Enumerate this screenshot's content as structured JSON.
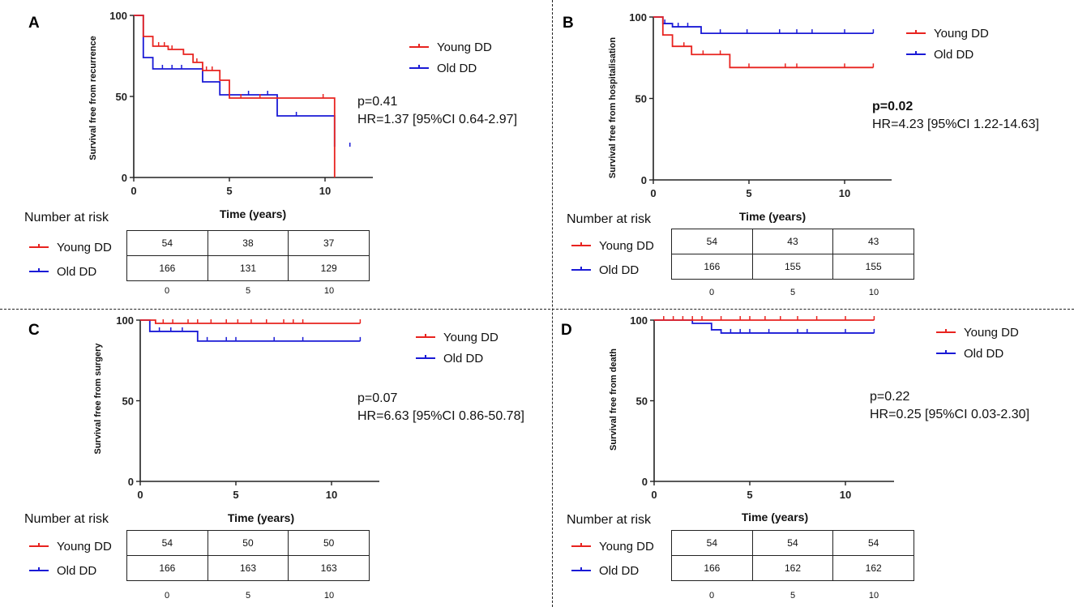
{
  "figure": {
    "risk_table_title": "Number at risk",
    "xlabel": "Time (years)"
  },
  "series_colors": {
    "young": "#e8231f",
    "old": "#1a1ad6"
  },
  "chart_data": [
    {
      "type": "line",
      "panel": "A",
      "ylabel": "Survival free from recurrence",
      "xlabel": "Time (years)",
      "xlim": [
        0,
        12.5
      ],
      "ylim": [
        0,
        100
      ],
      "xticks": [
        "0",
        "5",
        "10"
      ],
      "yticks": [
        "0",
        "50",
        "100"
      ],
      "series": [
        {
          "name": "Young DD",
          "color": "#e8231f",
          "x": [
            0,
            0.5,
            1.0,
            1.8,
            2.6,
            3.1,
            3.6,
            4.5,
            5.0,
            10.5
          ],
          "y": [
            100,
            87,
            81,
            79,
            76,
            71,
            66,
            60,
            49,
            0
          ],
          "censored": [
            [
              1.3,
              81
            ],
            [
              1.6,
              81
            ],
            [
              2.0,
              79
            ],
            [
              3.3,
              71
            ],
            [
              3.8,
              66
            ],
            [
              4.1,
              66
            ],
            [
              5.6,
              49
            ],
            [
              6.6,
              49
            ],
            [
              9.9,
              49
            ]
          ]
        },
        {
          "name": "Old DD",
          "color": "#1a1ad6",
          "x": [
            0,
            0.5,
            1.0,
            3.6,
            4.5,
            7.5,
            10.5
          ],
          "y": [
            100,
            74,
            67,
            59,
            51,
            38,
            19
          ],
          "censored": [
            [
              1.5,
              67
            ],
            [
              2.0,
              67
            ],
            [
              2.5,
              67
            ],
            [
              6.0,
              51
            ],
            [
              7.0,
              51
            ],
            [
              8.5,
              38
            ],
            [
              11.3,
              19
            ]
          ]
        }
      ],
      "annotation": {
        "p": "p=0.41",
        "hr": "HR=1.37 [95%CI 0.64-2.97]",
        "p_bold": false
      },
      "risk": {
        "xticks": [
          "0",
          "5",
          "10"
        ],
        "young": [
          "54",
          "38",
          "37"
        ],
        "old": [
          "166",
          "131",
          "129"
        ]
      }
    },
    {
      "type": "line",
      "panel": "B",
      "ylabel": "Survival free from hospitalisation",
      "xlabel": "Time (years)",
      "xlim": [
        0,
        12.5
      ],
      "ylim": [
        0,
        100
      ],
      "xticks": [
        "0",
        "5",
        "10"
      ],
      "yticks": [
        "0",
        "50",
        "100"
      ],
      "series": [
        {
          "name": "Young DD",
          "color": "#e8231f",
          "x": [
            0,
            0.5,
            1.0,
            2.0,
            4.0,
            11.5
          ],
          "y": [
            100,
            89,
            82,
            77,
            69,
            69
          ],
          "censored": [
            [
              1.6,
              82
            ],
            [
              2.6,
              77
            ],
            [
              3.5,
              77
            ],
            [
              5.0,
              69
            ],
            [
              6.9,
              69
            ],
            [
              7.5,
              69
            ],
            [
              10.0,
              69
            ],
            [
              11.5,
              69
            ]
          ]
        },
        {
          "name": "Old DD",
          "color": "#1a1ad6",
          "x": [
            0,
            0.5,
            1.0,
            2.5,
            11.5
          ],
          "y": [
            100,
            96,
            94,
            90,
            90
          ],
          "censored": [
            [
              0.6,
              96
            ],
            [
              1.3,
              94
            ],
            [
              1.8,
              94
            ],
            [
              3.5,
              90
            ],
            [
              4.9,
              90
            ],
            [
              6.6,
              90
            ],
            [
              7.5,
              90
            ],
            [
              8.3,
              90
            ],
            [
              10.0,
              90
            ],
            [
              11.5,
              90
            ]
          ]
        }
      ],
      "annotation": {
        "p": "p=0.02",
        "hr": "HR=4.23 [95%CI 1.22-14.63]",
        "p_bold": true
      },
      "risk": {
        "xticks": [
          "0",
          "5",
          "10"
        ],
        "young": [
          "54",
          "43",
          "43"
        ],
        "old": [
          "166",
          "155",
          "155"
        ]
      }
    },
    {
      "type": "line",
      "panel": "C",
      "ylabel": "Survival free from surgery",
      "xlabel": "Time (years)",
      "xlim": [
        0,
        12.5
      ],
      "ylim": [
        0,
        100
      ],
      "xticks": [
        "0",
        "5",
        "10"
      ],
      "yticks": [
        "0",
        "50",
        "100"
      ],
      "series": [
        {
          "name": "Young DD",
          "color": "#e8231f",
          "x": [
            0,
            0.8,
            11.5
          ],
          "y": [
            100,
            98,
            98
          ],
          "censored": [
            [
              1.2,
              98
            ],
            [
              1.7,
              98
            ],
            [
              2.5,
              98
            ],
            [
              3.0,
              98
            ],
            [
              3.7,
              98
            ],
            [
              4.5,
              98
            ],
            [
              5.1,
              98
            ],
            [
              5.8,
              98
            ],
            [
              6.6,
              98
            ],
            [
              7.5,
              98
            ],
            [
              8.0,
              98
            ],
            [
              8.5,
              98
            ],
            [
              11.5,
              98
            ]
          ]
        },
        {
          "name": "Old DD",
          "color": "#1a1ad6",
          "x": [
            0,
            0.5,
            3.0,
            11.5
          ],
          "y": [
            100,
            93,
            87,
            87
          ],
          "censored": [
            [
              1.0,
              93
            ],
            [
              1.6,
              93
            ],
            [
              2.2,
              93
            ],
            [
              3.5,
              87
            ],
            [
              4.5,
              87
            ],
            [
              5.0,
              87
            ],
            [
              7.0,
              87
            ],
            [
              8.5,
              87
            ],
            [
              11.5,
              87
            ]
          ]
        }
      ],
      "annotation": {
        "p": "p=0.07",
        "hr": "HR=6.63 [95%CI 0.86-50.78]",
        "p_bold": false
      },
      "risk": {
        "xticks": [
          "0",
          "5",
          "10"
        ],
        "young": [
          "54",
          "50",
          "50"
        ],
        "old": [
          "166",
          "163",
          "163"
        ]
      }
    },
    {
      "type": "line",
      "panel": "D",
      "ylabel": "Survival free from death",
      "xlabel": "Time (years)",
      "xlim": [
        0,
        12.5
      ],
      "ylim": [
        0,
        100
      ],
      "xticks": [
        "0",
        "5",
        "10"
      ],
      "yticks": [
        "0",
        "50",
        "100"
      ],
      "series": [
        {
          "name": "Young DD",
          "color": "#e8231f",
          "x": [
            0,
            11.5
          ],
          "y": [
            100,
            100
          ],
          "censored": [
            [
              0.5,
              100
            ],
            [
              1.0,
              100
            ],
            [
              1.5,
              100
            ],
            [
              2.0,
              100
            ],
            [
              2.5,
              100
            ],
            [
              3.5,
              100
            ],
            [
              4.5,
              100
            ],
            [
              5.0,
              100
            ],
            [
              5.8,
              100
            ],
            [
              6.6,
              100
            ],
            [
              7.5,
              100
            ],
            [
              8.5,
              100
            ],
            [
              10.0,
              100
            ],
            [
              11.5,
              100
            ]
          ]
        },
        {
          "name": "Old DD",
          "color": "#1a1ad6",
          "x": [
            0,
            2.0,
            3.0,
            3.5,
            11.5
          ],
          "y": [
            100,
            98,
            94,
            92,
            92
          ],
          "censored": [
            [
              4.0,
              92
            ],
            [
              4.5,
              92
            ],
            [
              5.0,
              92
            ],
            [
              6.0,
              92
            ],
            [
              7.5,
              92
            ],
            [
              8.0,
              92
            ],
            [
              10.0,
              92
            ],
            [
              11.5,
              92
            ]
          ]
        }
      ],
      "annotation": {
        "p": "p=0.22",
        "hr": "HR=0.25 [95%CI 0.03-2.30]",
        "p_bold": false
      },
      "risk": {
        "xticks": [
          "0",
          "5",
          "10"
        ],
        "young": [
          "54",
          "54",
          "54"
        ],
        "old": [
          "166",
          "162",
          "162"
        ]
      }
    }
  ]
}
